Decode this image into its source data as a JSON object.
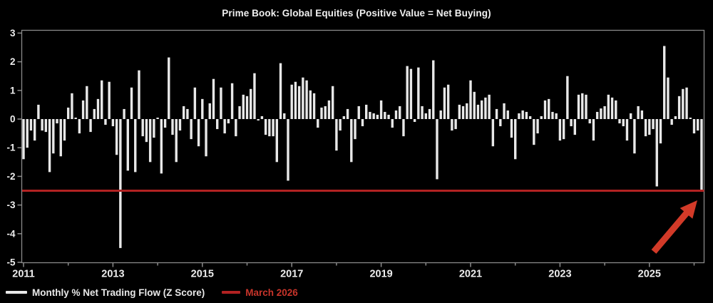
{
  "chart_data": {
    "type": "bar",
    "title": "Prime Book: Global Equities (Positive Value = Net Buying)",
    "x_start": "2011-01",
    "x_end": "2026-03",
    "x_unit": "month",
    "x_tick_labels": [
      "2011",
      "2013",
      "2015",
      "2017",
      "2019",
      "2021",
      "2023",
      "2025"
    ],
    "y_tick_labels": [
      "3",
      "2",
      "1",
      "0",
      "-1",
      "-2",
      "-3",
      "-4",
      "-5"
    ],
    "y_ticks": [
      3,
      2,
      1,
      0,
      -1,
      -2,
      -3,
      -4,
      -5
    ],
    "ylim": [
      -5,
      3
    ],
    "grid": false,
    "series": [
      {
        "name": "Monthly % Net Trading Flow (Z Score)",
        "color": "#e8e8e8",
        "values": [
          -1.4,
          -1.0,
          -0.4,
          -0.75,
          0.5,
          -0.4,
          -0.45,
          -1.85,
          -1.2,
          -0.15,
          -1.3,
          -0.75,
          0.4,
          0.9,
          0.05,
          -0.5,
          0.65,
          1.15,
          -0.45,
          0.35,
          0.7,
          1.35,
          -0.2,
          1.3,
          -0.25,
          -1.25,
          -4.5,
          0.35,
          -1.8,
          1.1,
          -1.85,
          1.7,
          -0.6,
          -0.8,
          -1.5,
          -0.65,
          0.05,
          -1.9,
          -0.3,
          2.15,
          -0.55,
          -1.5,
          -0.4,
          0.45,
          0.35,
          -0.7,
          1.1,
          -0.95,
          0.7,
          -1.3,
          0.55,
          1.4,
          -0.35,
          1.1,
          -0.5,
          -0.15,
          1.25,
          -0.6,
          0.45,
          0.85,
          0.8,
          1.05,
          1.6,
          -0.05,
          0.1,
          -0.55,
          -0.6,
          -0.6,
          -1.5,
          1.95,
          0.2,
          -2.15,
          1.2,
          1.3,
          1.15,
          1.45,
          1.35,
          1.0,
          0.9,
          -0.3,
          0.4,
          0.45,
          0.65,
          1.15,
          -1.1,
          -0.4,
          0.1,
          0.35,
          -1.5,
          -0.7,
          0.45,
          -0.25,
          0.5,
          0.25,
          0.2,
          0.15,
          0.65,
          0.25,
          0.15,
          -0.3,
          0.3,
          0.45,
          -0.6,
          1.85,
          1.75,
          -0.1,
          1.8,
          0.45,
          0.2,
          0.35,
          2.05,
          -2.1,
          0.3,
          1.1,
          1.2,
          -0.4,
          -0.35,
          0.5,
          0.45,
          0.55,
          1.35,
          0.95,
          0.5,
          0.65,
          0.75,
          0.85,
          -0.95,
          0.35,
          -0.25,
          0.55,
          0.3,
          -0.65,
          -1.4,
          0.2,
          0.3,
          0.25,
          0.1,
          -0.9,
          -0.5,
          0.1,
          0.65,
          0.7,
          0.25,
          0.2,
          -0.75,
          -0.7,
          1.5,
          -0.25,
          -0.55,
          0.85,
          0.9,
          0.85,
          -0.15,
          -0.75,
          0.25,
          0.37,
          0.45,
          0.85,
          0.75,
          0.65,
          -0.15,
          -0.25,
          -0.75,
          0.2,
          -1.2,
          0.45,
          0.3,
          -0.6,
          -0.55,
          -0.35,
          -2.35,
          -0.85,
          2.55,
          1.45,
          -0.2,
          0.1,
          0.8,
          1.05,
          1.1,
          0.05,
          -0.5,
          -0.4,
          -2.5
        ]
      }
    ],
    "reference_line": {
      "label": "March 2026",
      "value": -2.5,
      "color": "#b22222"
    },
    "annotation": {
      "type": "arrow",
      "color": "#d23a28",
      "points_to": "March 2026 level at far right of chart"
    },
    "legend_position": "bottom-left"
  },
  "legend": [
    {
      "label": "Monthly % Net Trading Flow (Z Score)",
      "color": "#e8e8e8"
    },
    {
      "label": "March 2026",
      "color": "#c8342a"
    }
  ],
  "colors": {
    "background": "#000000",
    "bar": "#e8e8e8",
    "frame": "#8a8a8a",
    "tick_text": "#ededed",
    "title_text": "#f0f0f0",
    "reference_line": "#b22222",
    "arrow": "#d23a28",
    "legend_flow_text": "#e8e8e8",
    "legend_march_text": "#c8342a"
  }
}
